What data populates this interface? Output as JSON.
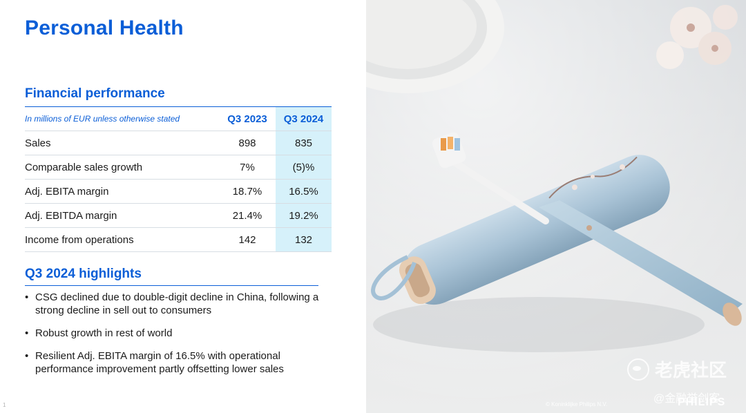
{
  "slide": {
    "title": "Personal Health",
    "page_number": "1"
  },
  "financial": {
    "title": "Financial performance",
    "note": "In millions of EUR unless otherwise stated",
    "col1": "Q3 2023",
    "col2": "Q3 2024",
    "rows": [
      {
        "label": "Sales",
        "q3_2023": "898",
        "q3_2024": "835"
      },
      {
        "label": "Comparable sales growth",
        "q3_2023": "7%",
        "q3_2024": "(5)%"
      },
      {
        "label": "Adj. EBITA margin",
        "q3_2023": "18.7%",
        "q3_2024": "16.5%"
      },
      {
        "label": "Adj. EBITDA margin",
        "q3_2023": "21.4%",
        "q3_2024": "19.2%"
      },
      {
        "label": "Income from operations",
        "q3_2023": "142",
        "q3_2024": "132"
      }
    ]
  },
  "highlights": {
    "title": "Q3 2024 highlights",
    "items": [
      "CSG declined due to double-digit decline in China, following a strong decline in sell out to consumers",
      "Robust growth in rest of world",
      "Resilient Adj. EBITA margin of 16.5% with operational performance improvement partly offsetting lower sales"
    ]
  },
  "image": {
    "copyright": "© Koninklijke Philips N.V.",
    "brand": "PHILIPS",
    "watermark_main": "老虎社区",
    "watermark_sub": "@金融誉剑客"
  },
  "colors": {
    "accent": "#0b5ed7",
    "highlight_column": "#d6f1fa"
  }
}
